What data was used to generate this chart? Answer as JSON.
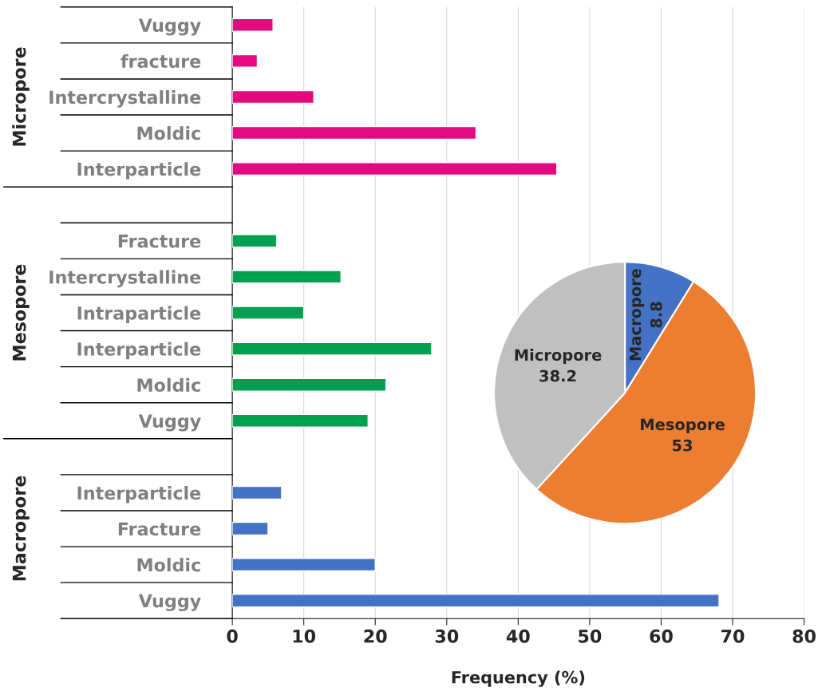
{
  "chart_data": [
    {
      "type": "bar",
      "orientation": "horizontal",
      "xlabel": "Frequency (%)",
      "categories": [
        "Vuggy",
        "fracture",
        "Intercrystalline",
        "Moldic",
        "Interparticle",
        null,
        "Fracture",
        "Intercrystalline",
        "Intraparticle",
        "Interparticle",
        "Moldic",
        "Vuggy",
        null,
        "Interparticle",
        "Fracture",
        "Moldic",
        "Vuggy"
      ],
      "values": [
        5.7,
        3.5,
        11.4,
        34.1,
        45.4,
        null,
        6.2,
        15.2,
        10.0,
        27.9,
        21.5,
        19.0,
        null,
        6.9,
        5.0,
        20.0,
        68.1
      ],
      "colors": [
        "#e5097f",
        "#e5097f",
        "#e5097f",
        "#e5097f",
        "#e5097f",
        null,
        "#00a050",
        "#00a050",
        "#00a050",
        "#00a050",
        "#00a050",
        "#00a050",
        null,
        "#4472c4",
        "#4472c4",
        "#4472c4",
        "#4472c4"
      ],
      "xlim": [
        0,
        80
      ],
      "xticks": [
        0,
        10,
        20,
        30,
        40,
        50,
        60,
        70,
        80
      ],
      "grid": "x",
      "annotations": [
        "Micropore",
        "Mesopore",
        "Macropore"
      ]
    },
    {
      "type": "pie",
      "categories": [
        "Macropore",
        "Mesopore",
        "Micropore"
      ],
      "values": [
        8.8,
        53,
        38.2
      ],
      "colors": [
        "#4472c4",
        "#ed7d31",
        "#c0c0c0"
      ],
      "data_labels": true
    }
  ]
}
